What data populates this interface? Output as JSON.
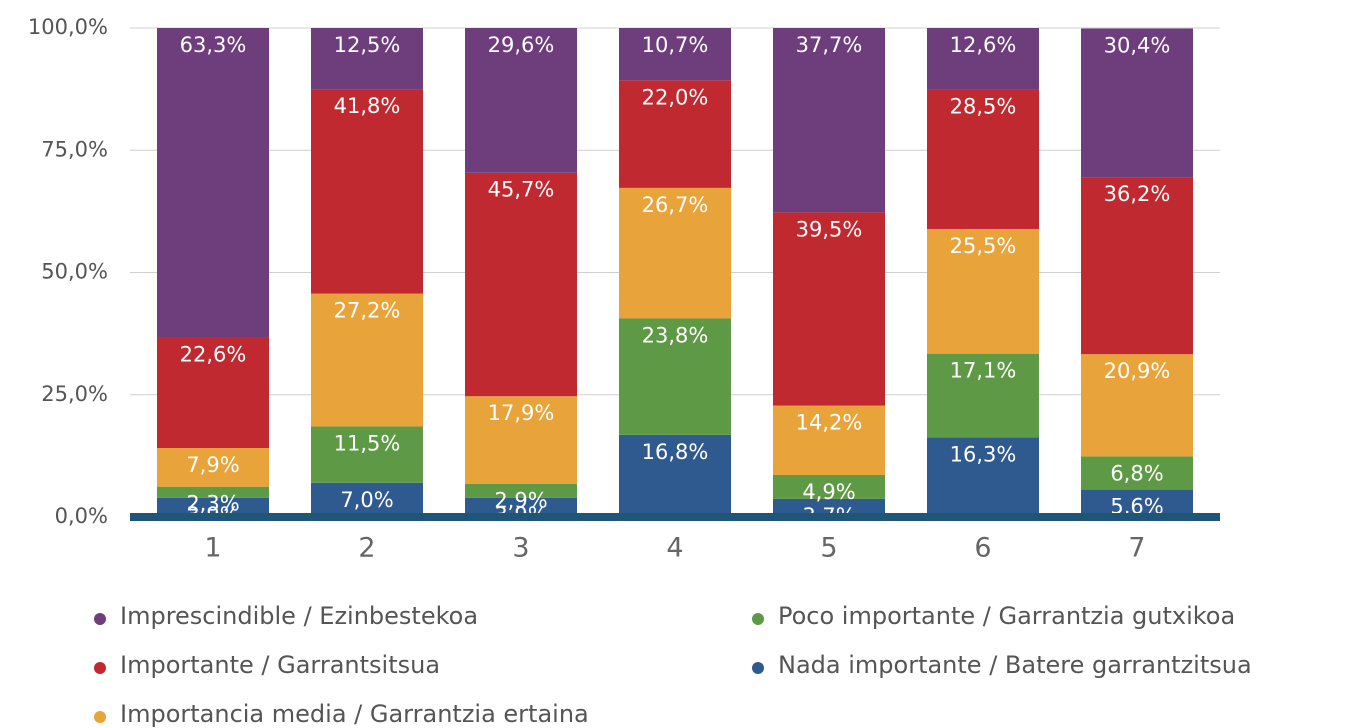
{
  "chart_data": {
    "type": "stacked_bar",
    "categories": [
      "1",
      "2",
      "3",
      "4",
      "5",
      "6",
      "7"
    ],
    "series": [
      {
        "name": "Imprescindible / Ezinbestekoa",
        "color": "#6e3d7c",
        "values": [
          63.3,
          12.5,
          29.6,
          10.7,
          37.7,
          12.6,
          30.4
        ],
        "value_labels": [
          "63,3%",
          "12,5%",
          "29,6%",
          "10,7%",
          "37,7%",
          "12,6%",
          "30,4%"
        ]
      },
      {
        "name": "Importante / Garrantsitsua",
        "color": "#c0292f",
        "values": [
          22.6,
          41.8,
          45.7,
          22.0,
          39.5,
          28.5,
          36.2
        ],
        "value_labels": [
          "22,6%",
          "41,8%",
          "45,7%",
          "22,0%",
          "39,5%",
          "28,5%",
          "36,2%"
        ]
      },
      {
        "name": "Importancia media / Garrantzia ertaina",
        "color": "#e8a33b",
        "values": [
          7.9,
          27.2,
          17.9,
          26.7,
          14.2,
          25.5,
          20.9
        ],
        "value_labels": [
          "7,9%",
          "27,2%",
          "17,9%",
          "26,7%",
          "14,2%",
          "25,5%",
          "20,9%"
        ]
      },
      {
        "name": "Poco importante / Garrantzia gutxikoa",
        "color": "#5e9a45",
        "values": [
          2.3,
          11.5,
          2.9,
          23.8,
          4.9,
          17.1,
          6.8
        ],
        "value_labels": [
          "2,3%",
          "11,5%",
          "2,9%",
          "23,8%",
          "4,9%",
          "17,1%",
          "6,8%"
        ]
      },
      {
        "name": "Nada importante / Batere garrantzitsua",
        "color": "#2e5a8f",
        "values": [
          3.9,
          7.0,
          3.9,
          16.8,
          3.7,
          16.3,
          5.6
        ],
        "value_labels": [
          "3,9%",
          "7,0%",
          "3,9%",
          "16,8%",
          "3,7%",
          "16,3%",
          "5,6%"
        ]
      }
    ],
    "ylim": [
      0,
      100
    ],
    "yticks": [
      {
        "value": 0,
        "label": "0,0%"
      },
      {
        "value": 25,
        "label": "25,0%"
      },
      {
        "value": 50,
        "label": "50,0%"
      },
      {
        "value": 75,
        "label": "75,0%"
      },
      {
        "value": 100,
        "label": "100,0%"
      }
    ],
    "grid": true
  }
}
